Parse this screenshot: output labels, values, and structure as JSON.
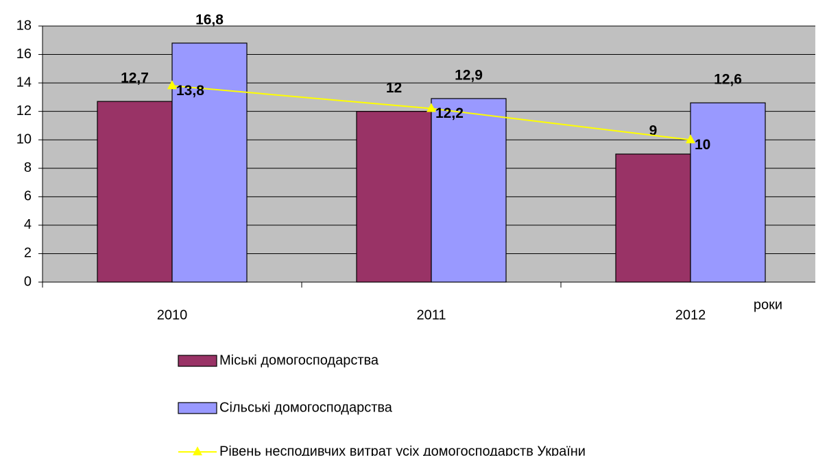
{
  "chart_data": {
    "type": "bar",
    "categories": [
      "2010",
      "2011",
      "2012"
    ],
    "x_label": "роки",
    "series": [
      {
        "name": "Міські домогосподарства",
        "color": "#993366",
        "values": [
          12.7,
          12,
          9
        ],
        "value_labels": [
          "12,7",
          "12",
          "9"
        ]
      },
      {
        "name": "Сільські домогосподарства",
        "color": "#9999ff",
        "values": [
          16.8,
          12.9,
          12.6
        ],
        "value_labels": [
          "16,8",
          "12,9",
          "12,6"
        ]
      },
      {
        "name": "Рівень несподивчих витрат усіх домогосподарств України",
        "type": "line",
        "color": "#ffff00",
        "values": [
          13.8,
          12.2,
          10
        ],
        "value_labels": [
          "13,8",
          "12,2",
          "10"
        ]
      }
    ],
    "ylim": [
      0,
      18
    ],
    "yticks": [
      0,
      2,
      4,
      6,
      8,
      10,
      12,
      14,
      16,
      18
    ],
    "grid": true,
    "plot_background": "#c0c0c0",
    "legend": "bottom"
  }
}
